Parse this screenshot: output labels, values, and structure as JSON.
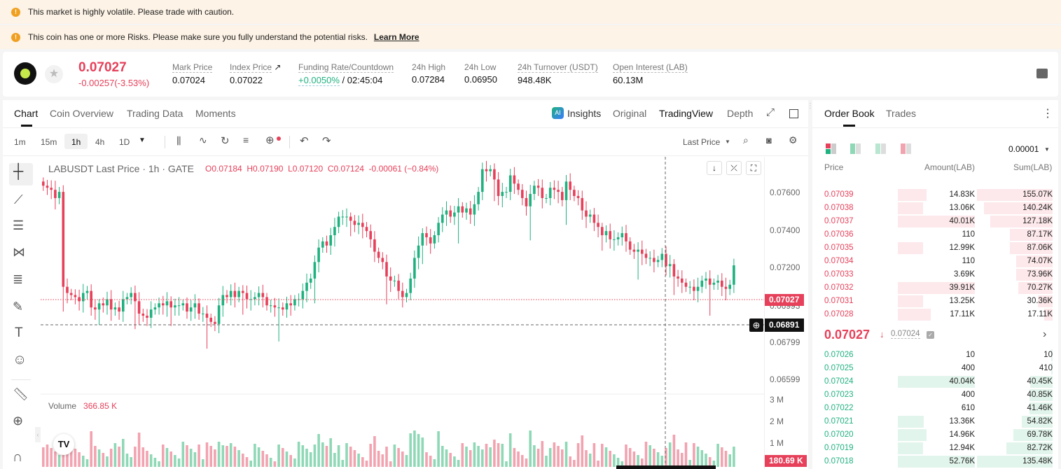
{
  "banners": [
    {
      "text": "This market is highly volatile. Please trade with caution."
    },
    {
      "text": "This coin has one or more Risks. Please make sure you fully understand the potential risks.",
      "link": "Learn More"
    }
  ],
  "ticker": {
    "price": "0.07027",
    "change": "-0.00257(-3.53%)",
    "stats": [
      {
        "label": "Mark Price",
        "value": "0.07024"
      },
      {
        "label": "Index Price",
        "value": "0.07022"
      },
      {
        "label": "Funding Rate/Countdown",
        "rate": "+0.0050%",
        "countdown": "/ 02:45:04"
      },
      {
        "label": "24h High",
        "value": "0.07284"
      },
      {
        "label": "24h Low",
        "value": "0.06950"
      },
      {
        "label": "24h Turnover (USDT)",
        "value": "948.48K"
      },
      {
        "label": "Open Interest (LAB)",
        "value": "60.13M"
      }
    ]
  },
  "chart_tabs": [
    "Chart",
    "Coin Overview",
    "Trading Data",
    "Moments"
  ],
  "view_tabs": {
    "insights": "Insights",
    "original": "Original",
    "tradingview": "TradingView",
    "depth": "Depth"
  },
  "timeframes": [
    "1m",
    "15m",
    "1h",
    "4h",
    "1D"
  ],
  "price_type": "Last Price",
  "legend": {
    "title": "LABUSDT Last Price · 1h · GATE",
    "o": "O0.07184",
    "h": "H0.07190",
    "l": "L0.07120",
    "c": "C0.07124",
    "chg": "-0.00061 (−0.84%)"
  },
  "volume": {
    "label": "Volume",
    "value": "366.85 K"
  },
  "axis": {
    "price_ticks": [
      "0.07600",
      "0.07400",
      "0.07200",
      "0.06993",
      "0.06799",
      "0.06599"
    ],
    "volume_ticks": [
      "3 M",
      "2 M",
      "1 M"
    ],
    "last_price": "0.07027",
    "cursor_price": "0.06891",
    "last_volume": "180.69 K"
  },
  "chart_data": {
    "type": "candlestick",
    "symbol": "LABUSDT",
    "interval": "1h",
    "yrange": [
      0.065,
      0.0765
    ],
    "closes": [
      0.0751,
      0.075,
      0.0749,
      0.0745,
      0.0748,
      0.0702,
      0.0699,
      0.0698,
      0.0697,
      0.0695,
      0.0699,
      0.07,
      0.0692,
      0.0691,
      0.0694,
      0.0693,
      0.0696,
      0.0691,
      0.0692,
      0.069,
      0.0696,
      0.0697,
      0.0699,
      0.0695,
      0.0689,
      0.0688,
      0.0687,
      0.0691,
      0.0692,
      0.0694,
      0.0693,
      0.0695,
      0.0692,
      0.0693,
      0.0693,
      0.0694,
      0.069,
      0.0692,
      0.0694,
      0.0689,
      0.0689,
      0.0687,
      0.0685,
      0.0684,
      0.0693,
      0.0698,
      0.0697,
      0.07,
      0.0697,
      0.07,
      0.0699,
      0.0696,
      0.0696,
      0.0697,
      0.0699,
      0.0697,
      0.0693,
      0.0693,
      0.0692,
      0.0692,
      0.0691,
      0.0694,
      0.0693,
      0.0696,
      0.0696,
      0.07,
      0.0704,
      0.0706,
      0.0714,
      0.0721,
      0.0724,
      0.0722,
      0.0727,
      0.0731,
      0.0736,
      0.0736,
      0.0736,
      0.0734,
      0.0732,
      0.0733,
      0.0731,
      0.0729,
      0.0725,
      0.0719,
      0.0716,
      0.0714,
      0.0707,
      0.0705,
      0.0705,
      0.07,
      0.0697,
      0.0699,
      0.0706,
      0.0716,
      0.0722,
      0.0728,
      0.0726,
      0.0723,
      0.0727,
      0.0733,
      0.0737,
      0.0739,
      0.0736,
      0.0738,
      0.0741,
      0.0738,
      0.074,
      0.0737,
      0.0742,
      0.0748,
      0.0759,
      0.0758,
      0.0759,
      0.0754,
      0.0746,
      0.0748,
      0.0748,
      0.0756,
      0.0752,
      0.0749,
      0.0745,
      0.0741,
      0.0747,
      0.0751,
      0.075,
      0.0745,
      0.0745,
      0.075,
      0.0749,
      0.0748,
      0.0744,
      0.0753,
      0.0749,
      0.0746,
      0.0745,
      0.0739,
      0.0736,
      0.0737,
      0.0733,
      0.0731,
      0.0727,
      0.0729,
      0.0725,
      0.0725,
      0.0726,
      0.0728,
      0.0724,
      0.072,
      0.0719,
      0.072,
      0.0718,
      0.0716,
      0.0716,
      0.0714,
      0.0715,
      0.0718,
      0.0712,
      0.0713,
      0.0707,
      0.0706,
      0.0704,
      0.0702,
      0.0702,
      0.07,
      0.0702,
      0.0705,
      0.0706,
      0.0703,
      0.0704,
      0.0705,
      0.0702,
      0.0701,
      0.0703,
      0.07124
    ]
  },
  "orderbook": {
    "tabs": [
      "Order Book",
      "Trades"
    ],
    "precision": "0.00001",
    "headers": [
      "Price",
      "Amount(LAB)",
      "Sum(LAB)"
    ],
    "asks": [
      [
        "0.07039",
        "14.83K",
        "155.07K",
        0.6
      ],
      [
        "0.07038",
        "13.06K",
        "140.24K",
        0.6
      ],
      [
        "0.07037",
        "40.01K",
        "127.18K",
        0.6
      ],
      [
        "0.07036",
        "110",
        "87.17K",
        0.6
      ],
      [
        "0.07035",
        "12.99K",
        "87.06K",
        0.6
      ],
      [
        "0.07034",
        "110",
        "74.07K",
        0.6
      ],
      [
        "0.07033",
        "3.69K",
        "73.96K",
        0.6
      ],
      [
        "0.07032",
        "39.91K",
        "70.27K",
        0.6
      ],
      [
        "0.07031",
        "13.25K",
        "30.36K",
        0.6
      ],
      [
        "0.07028",
        "17.11K",
        "17.11K",
        0.6
      ]
    ],
    "mid": {
      "price": "0.07027",
      "mark": "0.07024"
    },
    "bids": [
      [
        "0.07026",
        "10",
        "10",
        0.6
      ],
      [
        "0.07025",
        "400",
        "410",
        0.6
      ],
      [
        "0.07024",
        "40.04K",
        "40.45K",
        0.6
      ],
      [
        "0.07023",
        "400",
        "40.85K",
        0.6
      ],
      [
        "0.07022",
        "610",
        "41.46K",
        0.6
      ],
      [
        "0.07021",
        "13.36K",
        "54.82K",
        0.6
      ],
      [
        "0.07020",
        "14.96K",
        "69.78K",
        0.6
      ],
      [
        "0.07019",
        "12.94K",
        "82.72K",
        0.6
      ],
      [
        "0.07018",
        "52.76K",
        "135.48K",
        0.6
      ]
    ]
  },
  "colors": {
    "up": "#1fb17f",
    "down": "#e6405a",
    "up_soft": "#8fd8b6",
    "down_soft": "#f2a3b0"
  }
}
